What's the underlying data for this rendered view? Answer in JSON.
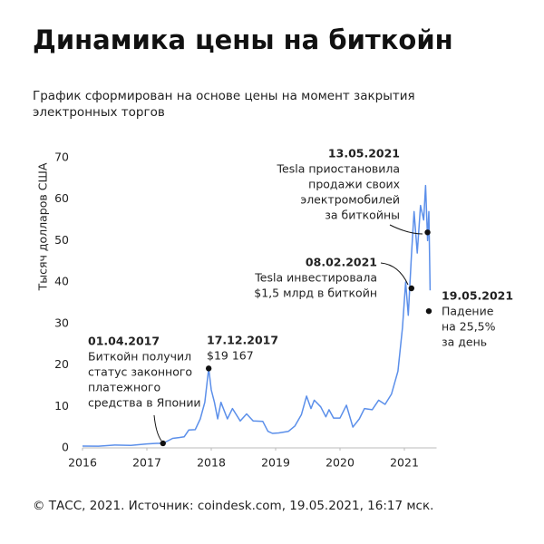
{
  "chart_data": {
    "type": "line",
    "title": "Динамика цены на биткойн",
    "subtitle": [
      "График сформирован на основе цены на момент закрытия",
      "электронных торгов"
    ],
    "y_label": "Тысяч долларов США",
    "footer": "© ТАСС, 2021. Источник: coindesk.com, 19.05.2021, 16:17 мск.",
    "color": "#5b8fea",
    "x": [
      2016.0,
      2016.25,
      2016.5,
      2016.75,
      2017.0,
      2017.15,
      2017.25,
      2017.4,
      2017.5,
      2017.58,
      2017.65,
      2017.75,
      2017.83,
      2017.9,
      2017.96,
      2018.0,
      2018.05,
      2018.1,
      2018.15,
      2018.25,
      2018.33,
      2018.45,
      2018.55,
      2018.65,
      2018.8,
      2018.88,
      2018.95,
      2019.05,
      2019.2,
      2019.3,
      2019.4,
      2019.48,
      2019.55,
      2019.6,
      2019.7,
      2019.78,
      2019.83,
      2019.9,
      2020.0,
      2020.1,
      2020.2,
      2020.3,
      2020.38,
      2020.5,
      2020.6,
      2020.7,
      2020.8,
      2020.9,
      2020.97,
      2021.02,
      2021.06,
      2021.11,
      2021.15,
      2021.2,
      2021.25,
      2021.3,
      2021.33,
      2021.36,
      2021.38,
      2021.4
    ],
    "values": [
      0.43,
      0.42,
      0.67,
      0.61,
      0.97,
      1.1,
      1.1,
      2.3,
      2.5,
      2.7,
      4.3,
      4.4,
      7.0,
      11,
      19.2,
      14,
      11,
      7,
      11,
      7,
      9.5,
      6.5,
      8.2,
      6.5,
      6.4,
      4,
      3.5,
      3.6,
      4,
      5.3,
      8,
      12.5,
      9.5,
      11.5,
      9.9,
      7.5,
      9.2,
      7.2,
      7.2,
      10.3,
      5,
      7,
      9.5,
      9.2,
      11.5,
      10.5,
      13,
      18.5,
      29,
      40,
      32,
      46.5,
      57,
      47,
      58.5,
      55,
      63.3,
      50,
      57,
      38
    ],
    "xlim": [
      2016,
      2021.5
    ],
    "ylim": [
      0,
      70
    ],
    "xticks": [
      2016,
      2017,
      2018,
      2019,
      2020,
      2021
    ],
    "yticks": [
      0,
      10,
      20,
      30,
      40,
      50,
      60,
      70
    ],
    "annotations": [
      {
        "date": "01.04.2017",
        "text": [
          "Биткойн получил",
          "статус законного",
          "платежного",
          "средства в Японии"
        ],
        "x": 2017.25,
        "y": 1.1
      },
      {
        "date": "17.12.2017",
        "text": [
          "$19 167"
        ],
        "x": 2017.96,
        "y": 19.167
      },
      {
        "date": "08.02.2021",
        "text": [
          "Tesla инвестировала",
          "$1,5 млрд в биткойн"
        ],
        "x": 2021.11,
        "y": 38.5
      },
      {
        "date": "13.05.2021",
        "text": [
          "Tesla приостановила",
          "продажи своих",
          "электромобилей",
          "за биткойны"
        ],
        "x": 2021.36,
        "y": 52
      },
      {
        "date": "19.05.2021",
        "text": [
          "Падение",
          "на 25,5%",
          "за день"
        ],
        "x": 2021.38,
        "y": 33
      }
    ]
  }
}
